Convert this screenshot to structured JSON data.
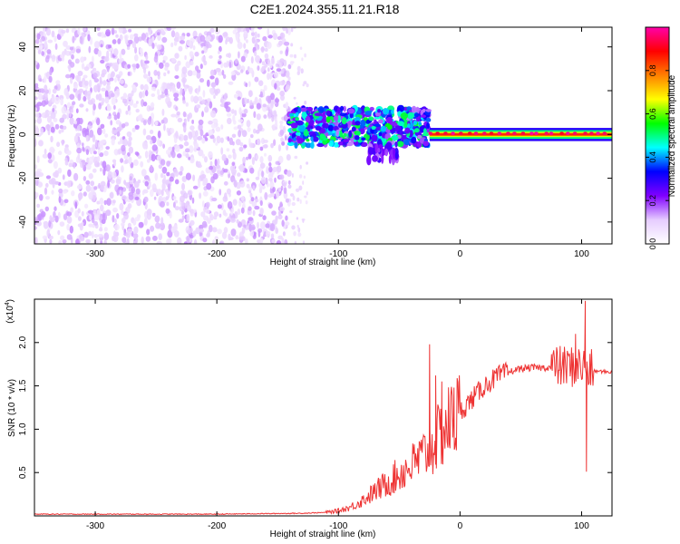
{
  "title": "C2E1.2024.355.11.21.R18",
  "chart_data": [
    {
      "type": "heatmap",
      "xlabel": "Height of straight line (km)",
      "ylabel": "Frequency (Hz)",
      "xlim": [
        -350,
        125
      ],
      "ylim": [
        -50,
        49
      ],
      "xticks": [
        -300,
        -200,
        -100,
        0,
        100
      ],
      "yticks": [
        -40,
        -20,
        0,
        20,
        40
      ],
      "colorbar": {
        "label": "Normalized spectral amplitude",
        "range": [
          0,
          1
        ],
        "ticks": [
          "0.0",
          "0.2",
          "0.4",
          "0.6",
          "0.8"
        ],
        "tick_values": [
          0,
          0.2,
          0.4,
          0.6,
          0.8
        ],
        "colors": [
          "#ffffff",
          "#e6ccff",
          "#8000ff",
          "#0000ff",
          "#00ffff",
          "#00ff00",
          "#ffff00",
          "#ff8000",
          "#ff0000",
          "#ff00aa"
        ]
      },
      "regions": [
        {
          "name": "noise",
          "x": [
            -350,
            -140
          ],
          "freq": [
            -50,
            49
          ],
          "amplitude": [
            0.0,
            0.1
          ]
        },
        {
          "name": "sparse",
          "x": [
            -140,
            -125
          ],
          "freq": [
            -50,
            49
          ],
          "amplitude": [
            0.0,
            0.05
          ]
        },
        {
          "name": "band",
          "x": [
            -140,
            -25
          ],
          "freq": [
            -5,
            12
          ],
          "amplitude": [
            0.1,
            0.5
          ]
        },
        {
          "name": "lobes",
          "x": [
            -75,
            -50
          ],
          "freq": [
            -12,
            -4
          ],
          "amplitude": [
            0.1,
            0.25
          ]
        },
        {
          "name": "carrier",
          "x": [
            -25,
            125
          ],
          "freq": [
            -2,
            3
          ],
          "amplitude": [
            0.3,
            1.0
          ]
        }
      ]
    },
    {
      "type": "line",
      "xlabel": "Height of straight line (km)",
      "ylabel": "SNR (10 * v/v)",
      "yscale_label": "(x10",
      "yscale_exp": "4",
      "yscale_close": ")",
      "xlim": [
        -350,
        125
      ],
      "ylim": [
        0,
        2.5
      ],
      "xticks": [
        -300,
        -200,
        -100,
        0,
        100
      ],
      "yticks": [
        "0.5",
        "1.0",
        "1.5",
        "2.0"
      ],
      "ytick_values": [
        0.5,
        1.0,
        1.5,
        2.0
      ],
      "series": [
        {
          "color": "#ee3333",
          "x": [
            -350,
            -200,
            -130,
            -110,
            -100,
            -90,
            -80,
            -70,
            -60,
            -50,
            -40,
            -30,
            -20,
            -10,
            0,
            10,
            20,
            30,
            40,
            50,
            60,
            70,
            80,
            90,
            100,
            105,
            110,
            125
          ],
          "y": [
            0.02,
            0.02,
            0.03,
            0.04,
            0.06,
            0.1,
            0.18,
            0.28,
            0.38,
            0.48,
            0.58,
            0.7,
            0.85,
            1.05,
            1.2,
            1.35,
            1.5,
            1.6,
            1.66,
            1.7,
            1.71,
            1.71,
            1.72,
            1.72,
            1.73,
            1.68,
            1.67,
            1.66
          ],
          "spikes": [
            {
              "x": -25,
              "y": 1.98
            },
            {
              "x": -20,
              "y": 1.62
            },
            {
              "x": -15,
              "y": 1.55
            },
            {
              "x": -5,
              "y": 1.48
            },
            {
              "x": 103,
              "y": 2.48
            },
            {
              "x": 104,
              "y": 0.51
            },
            {
              "x": 95,
              "y": 2.1
            }
          ]
        }
      ]
    }
  ]
}
